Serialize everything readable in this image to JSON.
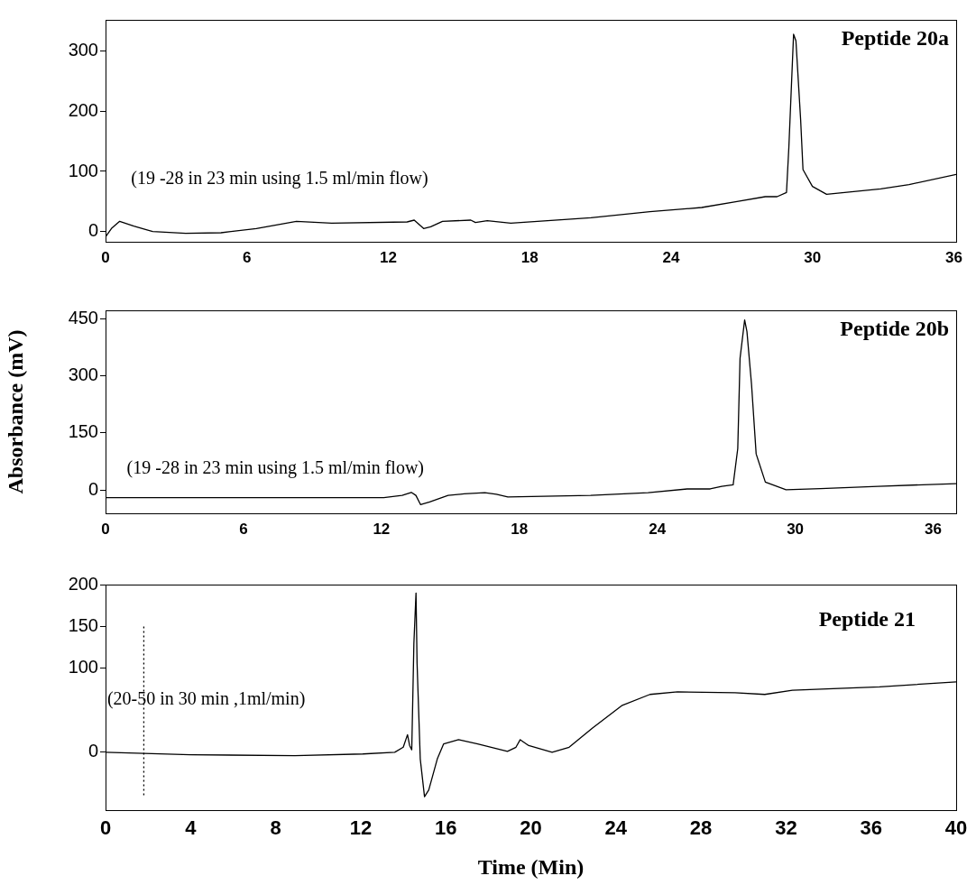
{
  "chart_data": [
    {
      "type": "line",
      "title": "Peptide 20a",
      "annotations": [
        "(19 -28 in 23 min using 1.5 ml/min flow)"
      ],
      "xlim": [
        0,
        36.1
      ],
      "ylim": [
        -17,
        352
      ],
      "xticks": [
        0,
        6,
        12,
        18,
        24,
        30,
        36
      ],
      "yticks": [
        0,
        100,
        200,
        300
      ],
      "marker": "none",
      "series": [
        {
          "color": "#000000",
          "line_style": "solid",
          "x": [
            0,
            0.25,
            0.6,
            1.2,
            2,
            3.4,
            4.9,
            6.4,
            8.1,
            9.6,
            12.8,
            13.1,
            13.5,
            13.8,
            14.3,
            15.5,
            15.7,
            16.2,
            17.2,
            20.6,
            23.1,
            25.3,
            26.8,
            28,
            28.5,
            28.9,
            29,
            29.2,
            29.3,
            29.5,
            29.6,
            30,
            30.6,
            32.9,
            34.1,
            36.1
          ],
          "values": [
            -9,
            5,
            17,
            9,
            0,
            -3,
            -2,
            5,
            17,
            14,
            16,
            19,
            5,
            8,
            17,
            19,
            15,
            18,
            14,
            23,
            33,
            40,
            50,
            58,
            58,
            65,
            140,
            328,
            317,
            186,
            103,
            75,
            62,
            71,
            78,
            95
          ]
        }
      ]
    },
    {
      "type": "line",
      "title": "Peptide 20b",
      "ylabel": "Absorbance (mV)",
      "annotations": [
        "(19 -28 in 23 min using 1.5 ml/min flow)"
      ],
      "xlim": [
        0,
        37
      ],
      "ylim": [
        -61,
        472
      ],
      "xticks": [
        0,
        6,
        12,
        18,
        24,
        30,
        36
      ],
      "yticks": [
        0,
        150,
        300,
        450
      ],
      "marker": "none",
      "series": [
        {
          "color": "#000000",
          "line_style": "solid",
          "x": [
            0,
            12.1,
            12.9,
            13.3,
            13.5,
            13.7,
            14.1,
            14.9,
            15.6,
            16.5,
            17,
            17.5,
            21.1,
            23.6,
            25.3,
            26.3,
            26.8,
            27.3,
            27.5,
            27.6,
            27.8,
            27.9,
            28.1,
            28.3,
            28.7,
            29.6,
            31.1,
            33.6,
            37
          ],
          "values": [
            -20,
            -20,
            -14,
            -6,
            -14,
            -38,
            -31,
            -14,
            -10,
            -7,
            -11,
            -18,
            -14,
            -7,
            3,
            3,
            10,
            14,
            109,
            346,
            447,
            416,
            277,
            95,
            21,
            1,
            4,
            10,
            17
          ]
        }
      ]
    },
    {
      "type": "line",
      "title": "Peptide 21",
      "xlabel": "Time (Min)",
      "annotations": [
        "(20-50 in 30 min ,1ml/min)"
      ],
      "xlim": [
        0,
        40
      ],
      "ylim": [
        -69,
        200
      ],
      "xticks": [
        0,
        4,
        8,
        12,
        16,
        20,
        24,
        28,
        32,
        36,
        40
      ],
      "yticks": [
        0,
        100,
        150,
        200
      ],
      "marker": "none",
      "series": [
        {
          "color": "#000000",
          "line_style": "solid",
          "x": [
            0,
            4,
            8.9,
            12.1,
            13.6,
            14,
            14.2,
            14.3,
            14.4,
            14.5,
            14.6,
            14.65,
            14.8,
            15,
            15.2,
            15.6,
            15.9,
            16.6,
            17.5,
            18.9,
            19.3,
            19.5,
            19.9,
            21,
            21.8,
            22.9,
            24.3,
            25.6,
            26.9,
            29.6,
            31,
            32.3,
            36.4,
            40
          ],
          "values": [
            0,
            -3,
            -4,
            -2,
            0,
            6,
            21,
            8,
            3,
            130,
            190,
            106,
            -8,
            -53,
            -45,
            -8,
            10,
            15,
            10,
            1,
            6,
            15,
            8,
            0,
            6,
            29,
            56,
            69,
            72,
            71,
            69,
            74,
            78,
            84
          ]
        },
        {
          "color": "#000000",
          "line_style": "dotted",
          "x": [
            1.8,
            1.8
          ],
          "values": [
            150,
            -53
          ]
        }
      ]
    }
  ]
}
